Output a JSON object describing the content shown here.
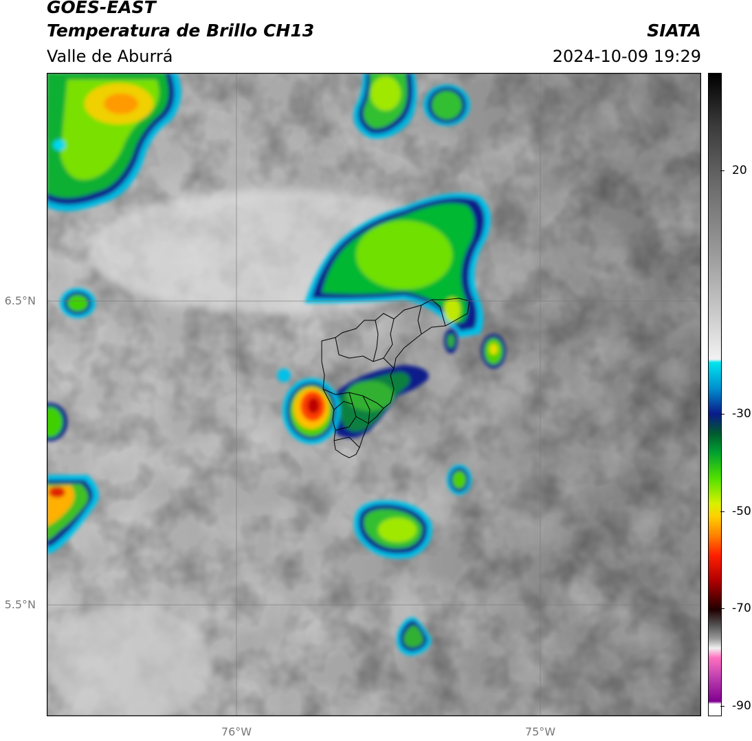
{
  "header": {
    "title": "GOES-EAST",
    "subtitle": "Temperatura de Brillo CH13",
    "source": "SIATA",
    "region": "Valle de Aburrá",
    "datetime": "2024-10-09 19:29"
  },
  "map": {
    "lat_labels": [
      "6.5°N",
      "5.5°N"
    ],
    "lon_labels": [
      "76°W",
      "75°W"
    ]
  },
  "colorbar": {
    "range": [
      -92,
      40
    ],
    "ticks": [
      20,
      -30,
      -50,
      -70,
      -90
    ]
  }
}
